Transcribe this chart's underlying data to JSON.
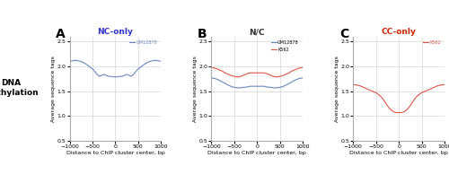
{
  "title_A": "NC-only",
  "title_B": "N/C",
  "title_C": "CC-only",
  "title_A_color": "#3333cc",
  "title_B_color": "#333333",
  "title_C_color": "#cc2200",
  "panel_labels": [
    "A",
    "B",
    "C"
  ],
  "ylabel_main": "DNA\nmethylation",
  "ylabel_sub": "Average sequence tags",
  "xlabel": "Distance to ChIP cluster center, bp",
  "xlim": [
    -1000,
    1000
  ],
  "ylim": [
    0.5,
    2.6
  ],
  "yticks": [
    0.5,
    1.0,
    1.5,
    2.0,
    2.5
  ],
  "xticks": [
    -1000,
    -500,
    0,
    500,
    1000
  ],
  "color_blue": "#6688bb",
  "color_red": "#dd5544",
  "legend_A": [
    "GM12878"
  ],
  "legend_B": [
    "GM12878",
    "K562"
  ],
  "legend_C": [
    "K562"
  ],
  "x": [
    -1000,
    -950,
    -900,
    -850,
    -800,
    -750,
    -700,
    -650,
    -600,
    -550,
    -500,
    -450,
    -400,
    -350,
    -300,
    -250,
    -200,
    -150,
    -100,
    -50,
    0,
    50,
    100,
    150,
    200,
    250,
    300,
    350,
    400,
    450,
    500,
    550,
    600,
    650,
    700,
    750,
    800,
    850,
    900,
    950,
    1000
  ],
  "A_blue": [
    2.1,
    2.11,
    2.12,
    2.12,
    2.11,
    2.1,
    2.08,
    2.05,
    2.02,
    1.98,
    1.95,
    1.9,
    1.84,
    1.8,
    1.82,
    1.84,
    1.82,
    1.8,
    1.8,
    1.79,
    1.79,
    1.79,
    1.8,
    1.8,
    1.82,
    1.84,
    1.82,
    1.8,
    1.84,
    1.9,
    1.95,
    1.98,
    2.02,
    2.05,
    2.08,
    2.1,
    2.11,
    2.12,
    2.12,
    2.11,
    2.1
  ],
  "B_blue": [
    1.77,
    1.76,
    1.75,
    1.73,
    1.71,
    1.68,
    1.66,
    1.63,
    1.61,
    1.59,
    1.58,
    1.57,
    1.57,
    1.57,
    1.58,
    1.58,
    1.59,
    1.6,
    1.6,
    1.6,
    1.6,
    1.6,
    1.6,
    1.6,
    1.59,
    1.58,
    1.58,
    1.57,
    1.57,
    1.57,
    1.58,
    1.59,
    1.61,
    1.63,
    1.66,
    1.68,
    1.71,
    1.73,
    1.75,
    1.76,
    1.77
  ],
  "B_red": [
    1.98,
    1.97,
    1.96,
    1.94,
    1.92,
    1.9,
    1.87,
    1.85,
    1.83,
    1.81,
    1.8,
    1.79,
    1.79,
    1.8,
    1.82,
    1.84,
    1.86,
    1.87,
    1.87,
    1.87,
    1.87,
    1.87,
    1.87,
    1.87,
    1.86,
    1.84,
    1.82,
    1.8,
    1.79,
    1.79,
    1.8,
    1.81,
    1.83,
    1.85,
    1.87,
    1.9,
    1.92,
    1.94,
    1.96,
    1.97,
    1.98
  ],
  "C_red": [
    1.63,
    1.63,
    1.62,
    1.61,
    1.59,
    1.57,
    1.55,
    1.53,
    1.51,
    1.49,
    1.47,
    1.44,
    1.4,
    1.35,
    1.28,
    1.21,
    1.15,
    1.11,
    1.08,
    1.07,
    1.07,
    1.07,
    1.08,
    1.11,
    1.15,
    1.21,
    1.28,
    1.35,
    1.4,
    1.44,
    1.47,
    1.49,
    1.51,
    1.53,
    1.55,
    1.57,
    1.59,
    1.61,
    1.62,
    1.63,
    1.63
  ]
}
